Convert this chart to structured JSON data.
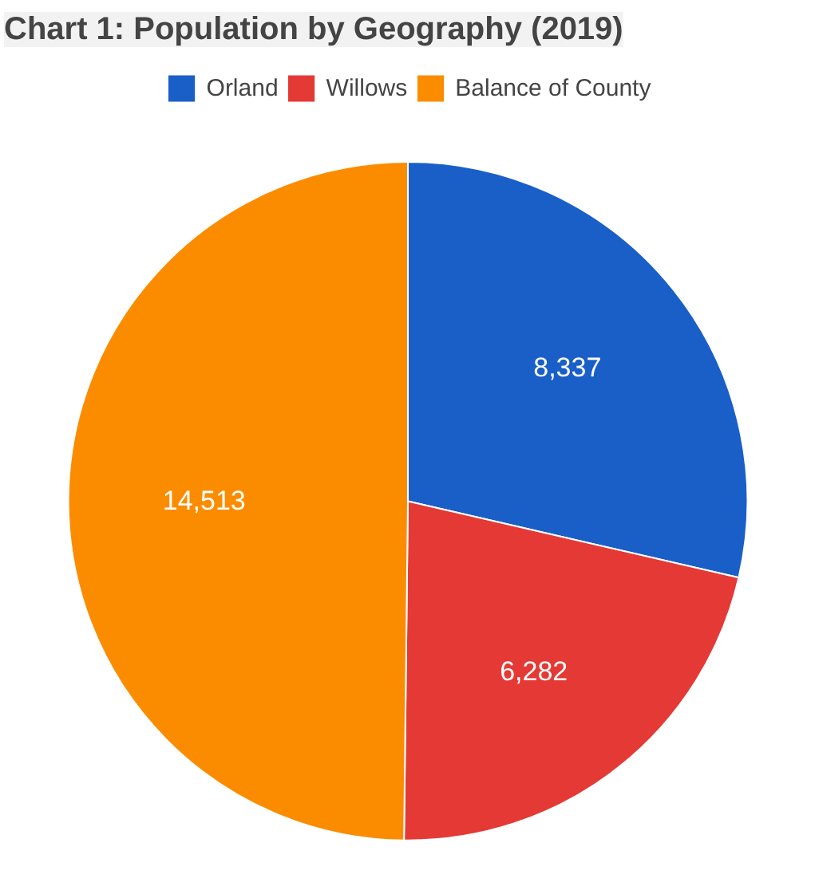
{
  "chart_data": {
    "type": "pie",
    "title": "Chart 1: Population by Geography (2019)",
    "categories": [
      "Orland",
      "Willows",
      "Balance of County"
    ],
    "values": [
      8337,
      6282,
      14513
    ],
    "colors": [
      "#1a5fc8",
      "#e53935",
      "#fb8c00"
    ],
    "value_labels": [
      "8,337",
      "6,282",
      "14,513"
    ],
    "legend": "top"
  }
}
